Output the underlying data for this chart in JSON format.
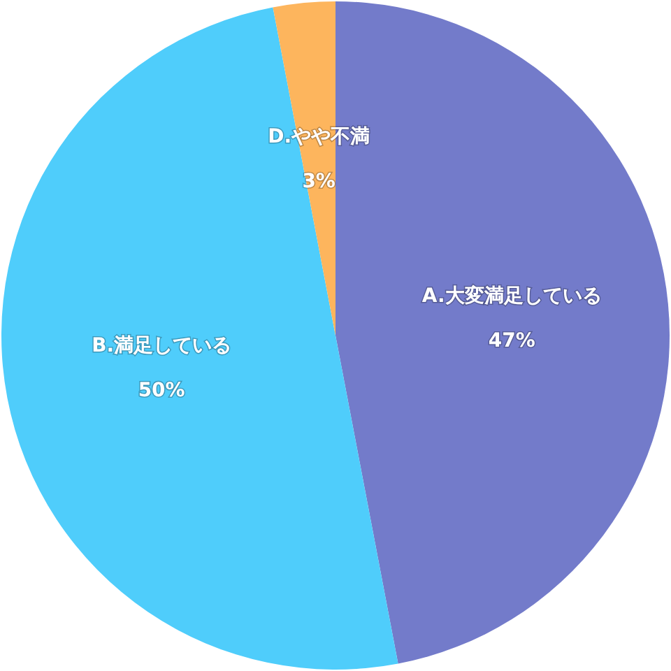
{
  "chart_data": {
    "type": "pie",
    "categories": [
      "A.大変満足している",
      "B.満足している",
      "D.やや不満"
    ],
    "values": [
      47,
      50,
      3
    ],
    "colors": [
      "#737bca",
      "#4fcdfb",
      "#fdb55d"
    ],
    "value_labels": [
      "47%",
      "50%",
      "3%"
    ]
  }
}
